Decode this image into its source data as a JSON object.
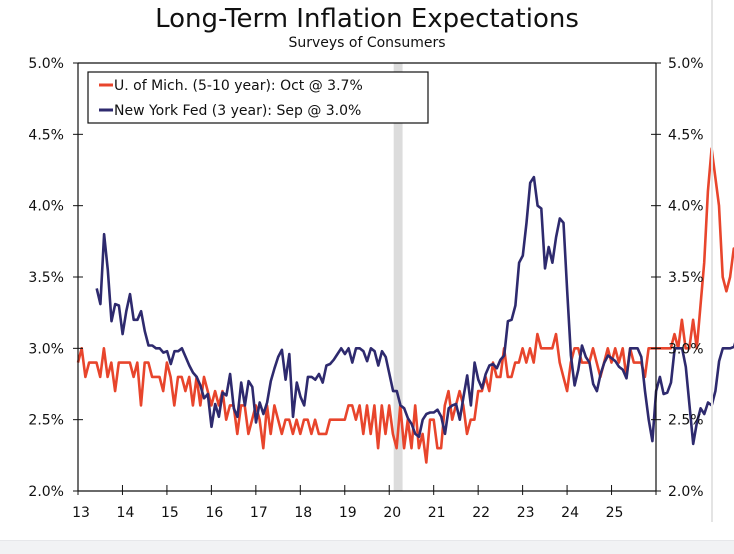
{
  "chart_data": {
    "type": "line",
    "title": "Long-Term Inflation Expectations",
    "subtitle": "Surveys of Consumers",
    "xlabel": "",
    "ylabel": "",
    "x_ticks": [
      "13",
      "14",
      "15",
      "16",
      "17",
      "18",
      "19",
      "20",
      "21",
      "22",
      "23",
      "24",
      "25"
    ],
    "xlim": [
      2013,
      2026
    ],
    "y_ticks": [
      "2.0%",
      "2.5%",
      "3.0%",
      "3.5%",
      "4.0%",
      "4.5%",
      "5.0%"
    ],
    "y_tick_values": [
      2.0,
      2.5,
      3.0,
      3.5,
      4.0,
      4.5,
      5.0
    ],
    "ylim": [
      2.0,
      5.0
    ],
    "dual_axis": true,
    "grid": false,
    "legend_position": "top-left",
    "shaded_periods": [
      {
        "label": "recession",
        "start": 2020.1,
        "end": 2020.3
      }
    ],
    "series": [
      {
        "name": "U. of Mich. (5-10 year): Oct @ 3.7%",
        "color": "#e8452c",
        "start": 2013.0,
        "frequency": "monthly",
        "values": [
          2.9,
          3.0,
          2.8,
          2.9,
          2.9,
          2.9,
          2.8,
          3.0,
          2.8,
          2.9,
          2.7,
          2.9,
          2.9,
          2.9,
          2.9,
          2.8,
          2.9,
          2.6,
          2.9,
          2.9,
          2.8,
          2.8,
          2.8,
          2.7,
          2.9,
          2.8,
          2.6,
          2.8,
          2.8,
          2.7,
          2.8,
          2.6,
          2.8,
          2.6,
          2.8,
          2.7,
          2.6,
          2.7,
          2.6,
          2.7,
          2.5,
          2.6,
          2.6,
          2.4,
          2.6,
          2.6,
          2.4,
          2.5,
          2.6,
          2.5,
          2.3,
          2.6,
          2.4,
          2.6,
          2.5,
          2.4,
          2.5,
          2.5,
          2.4,
          2.5,
          2.4,
          2.5,
          2.5,
          2.4,
          2.5,
          2.4,
          2.4,
          2.4,
          2.5,
          2.5,
          2.5,
          2.5,
          2.5,
          2.6,
          2.6,
          2.5,
          2.6,
          2.4,
          2.6,
          2.4,
          2.6,
          2.3,
          2.6,
          2.4,
          2.6,
          2.4,
          2.3,
          2.6,
          2.3,
          2.5,
          2.3,
          2.6,
          2.3,
          2.4,
          2.2,
          2.5,
          2.5,
          2.3,
          2.3,
          2.6,
          2.7,
          2.5,
          2.6,
          2.7,
          2.6,
          2.4,
          2.5,
          2.5,
          2.7,
          2.7,
          2.8,
          2.7,
          2.9,
          2.8,
          2.8,
          3.0,
          2.8,
          2.8,
          2.9,
          2.9,
          3.0,
          2.9,
          3.0,
          2.9,
          3.1,
          3.0,
          3.0,
          3.0,
          3.0,
          3.1,
          2.9,
          2.8,
          2.7,
          2.9,
          3.0,
          3.0,
          2.9,
          2.9,
          2.9,
          3.0,
          2.9,
          2.8,
          2.9,
          3.0,
          2.9,
          3.0,
          2.9,
          3.0,
          2.8,
          3.0,
          2.9,
          2.9,
          2.9,
          2.8,
          3.0,
          3.0,
          3.0,
          3.0,
          3.0,
          3.0,
          3.0,
          3.1,
          3.0,
          3.2,
          3.0,
          3.0,
          3.2,
          3.0,
          3.3,
          3.6,
          4.1,
          4.4,
          4.2,
          4.0,
          3.5,
          3.4,
          3.5,
          3.7,
          3.7
        ]
      },
      {
        "name": "New York Fed (3 year): Sep @ 3.0%",
        "color": "#2e2a6e",
        "start": 2013.42,
        "frequency": "monthly",
        "values": [
          3.42,
          3.31,
          3.8,
          3.55,
          3.19,
          3.31,
          3.3,
          3.1,
          3.26,
          3.38,
          3.2,
          3.2,
          3.26,
          3.12,
          3.02,
          3.02,
          3.0,
          3.0,
          2.97,
          2.98,
          2.89,
          2.98,
          2.98,
          3.0,
          2.94,
          2.88,
          2.83,
          2.8,
          2.74,
          2.65,
          2.68,
          2.45,
          2.61,
          2.52,
          2.69,
          2.67,
          2.82,
          2.58,
          2.52,
          2.76,
          2.6,
          2.77,
          2.73,
          2.48,
          2.62,
          2.54,
          2.62,
          2.77,
          2.86,
          2.94,
          2.99,
          2.78,
          2.96,
          2.52,
          2.76,
          2.66,
          2.6,
          2.8,
          2.8,
          2.78,
          2.82,
          2.76,
          2.88,
          2.89,
          2.92,
          2.96,
          3.0,
          2.96,
          3.0,
          2.9,
          3.0,
          3.0,
          2.98,
          2.91,
          3.0,
          2.98,
          2.88,
          2.98,
          2.94,
          2.82,
          2.7,
          2.7,
          2.6,
          2.58,
          2.51,
          2.47,
          2.4,
          2.38,
          2.5,
          2.54,
          2.55,
          2.55,
          2.57,
          2.52,
          2.4,
          2.58,
          2.6,
          2.61,
          2.5,
          2.66,
          2.81,
          2.6,
          2.9,
          2.78,
          2.72,
          2.82,
          2.88,
          2.89,
          2.86,
          2.92,
          2.95,
          3.19,
          3.2,
          3.3,
          3.6,
          3.65,
          3.88,
          4.16,
          4.2,
          4.0,
          3.98,
          3.56,
          3.71,
          3.6,
          3.78,
          3.91,
          3.88,
          3.4,
          2.95,
          2.74,
          2.85,
          3.02,
          2.94,
          2.9,
          2.75,
          2.7,
          2.82,
          2.9,
          2.95,
          2.93,
          2.91,
          2.87,
          2.85,
          2.79,
          3.0,
          3.0,
          3.0,
          2.94,
          2.7,
          2.5,
          2.35,
          2.7,
          2.8,
          2.68,
          2.69,
          2.76,
          3.0,
          3.0,
          3.0,
          2.87,
          2.6,
          2.33,
          2.48,
          2.58,
          2.54,
          2.62,
          2.6,
          2.7,
          2.91,
          3.0,
          3.0,
          3.0,
          3.01,
          3.1,
          3.17,
          3.0,
          3.0,
          3.0,
          3.0,
          3.0,
          3.01,
          3.05
        ]
      }
    ]
  },
  "legend": {
    "entries": [
      {
        "label": "U. of Mich. (5-10 year): Oct @ 3.7%",
        "color": "#e8452c"
      },
      {
        "label": "New York Fed (3 year): Sep @ 3.0%",
        "color": "#2e2a6e"
      }
    ]
  },
  "colors": {
    "recession_shade": "#dcdcdc",
    "axis": "#111111"
  }
}
